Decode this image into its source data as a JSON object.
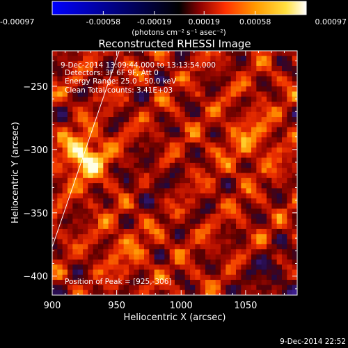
{
  "chart_data": {
    "type": "heatmap",
    "title": "Reconstructed RHESSI Image",
    "xlabel": "Heliocentric X (arcsec)",
    "ylabel": "Heliocentric Y (arcsec)",
    "xlim": [
      900,
      1090
    ],
    "ylim": [
      -415,
      -222
    ],
    "x_ticks": [
      900,
      950,
      1000,
      1050
    ],
    "y_ticks": [
      -400,
      -350,
      -300,
      -250
    ],
    "x_tick_labels": [
      "900",
      "950",
      "1000",
      "1050"
    ],
    "y_tick_labels": [
      "−400",
      "−350",
      "−300",
      "−250"
    ],
    "colorbar": {
      "ticks": [
        -0.00097,
        -0.00058,
        -0.00019,
        0.00019,
        0.00058,
        0.00097
      ],
      "tick_labels": [
        "-0.00097",
        "-0.00058",
        "-0.00019",
        "0.00019",
        "0.00058",
        "0.00097"
      ],
      "units": "(photons cm⁻² s⁻¹ asec⁻²)",
      "palette": [
        "#0000ff",
        "#000000",
        "#8b0000",
        "#ff3000",
        "#ff9a00",
        "#ffe040",
        "#ffffff"
      ]
    },
    "annotations": [
      "9-Dec-2014 13:09:44.000 to 13:13:54.000",
      "Detectors: 3F 6F 9F, Att 0",
      "Energy Range: 25.0 - 50.0 keV",
      "Clean     Total counts: 3.41E+03",
      "Position of Peak = [925,-306]"
    ],
    "peak": {
      "x": 925,
      "y": -306
    },
    "limb_line": [
      [
        900,
        -377
      ],
      [
        952,
        -222
      ]
    ],
    "grid": false,
    "legend": "none"
  },
  "timestamp": "9-Dec-2014 22:52"
}
